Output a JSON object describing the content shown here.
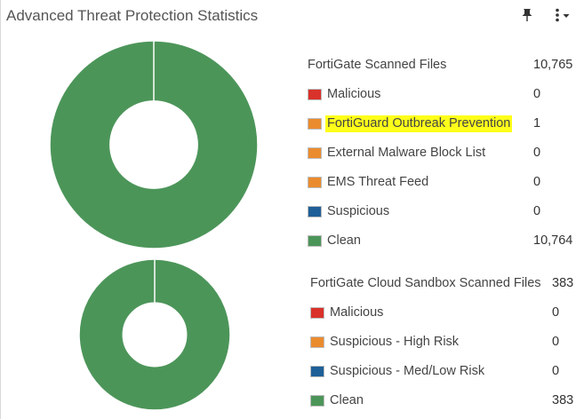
{
  "widget": {
    "title": "Advanced Threat Protection Statistics"
  },
  "icons": {
    "pin": "pin-icon",
    "menu": "kebab-menu-icon"
  },
  "colors": {
    "malicious": "#d9322a",
    "orange": "#ea8c2e",
    "suspicious": "#1f5f97",
    "clean": "#4c9559",
    "highlight": "#ffff1a"
  },
  "fortigate": {
    "header_label": "FortiGate Scanned Files",
    "header_value": "10,765",
    "items": [
      {
        "label": "Malicious",
        "value": "0",
        "color": "#d9322a"
      },
      {
        "label": "FortiGuard Outbreak Prevention",
        "value": "1",
        "color": "#ea8c2e",
        "highlighted": true
      },
      {
        "label": "External Malware Block List",
        "value": "0",
        "color": "#ea8c2e"
      },
      {
        "label": "EMS Threat Feed",
        "value": "0",
        "color": "#ea8c2e"
      },
      {
        "label": "Suspicious",
        "value": "0",
        "color": "#1f5f97"
      },
      {
        "label": "Clean",
        "value": "10,764",
        "color": "#4c9559"
      }
    ]
  },
  "sandbox": {
    "header_label": "FortiGate Cloud Sandbox Scanned Files",
    "header_value": "383",
    "items": [
      {
        "label": "Malicious",
        "value": "0",
        "color": "#d9322a"
      },
      {
        "label": "Suspicious - High Risk",
        "value": "0",
        "color": "#ea8c2e"
      },
      {
        "label": "Suspicious - Med/Low Risk",
        "value": "0",
        "color": "#1f5f97"
      },
      {
        "label": "Clean",
        "value": "383",
        "color": "#4c9559"
      }
    ]
  },
  "chart_data": [
    {
      "type": "pie",
      "categories": [
        "Malicious",
        "FortiGuard Outbreak Prevention",
        "External Malware Block List",
        "EMS Threat Feed",
        "Suspicious",
        "Clean"
      ],
      "values": [
        0,
        1,
        0,
        0,
        0,
        10764
      ],
      "colors": [
        "#d9322a",
        "#ea8c2e",
        "#ea8c2e",
        "#ea8c2e",
        "#1f5f97",
        "#4c9559"
      ]
    },
    {
      "type": "pie",
      "categories": [
        "Malicious",
        "Suspicious - High Risk",
        "Suspicious - Med/Low Risk",
        "Clean"
      ],
      "values": [
        0,
        0,
        0,
        383
      ],
      "colors": [
        "#d9322a",
        "#ea8c2e",
        "#1f5f97",
        "#4c9559"
      ]
    }
  ]
}
